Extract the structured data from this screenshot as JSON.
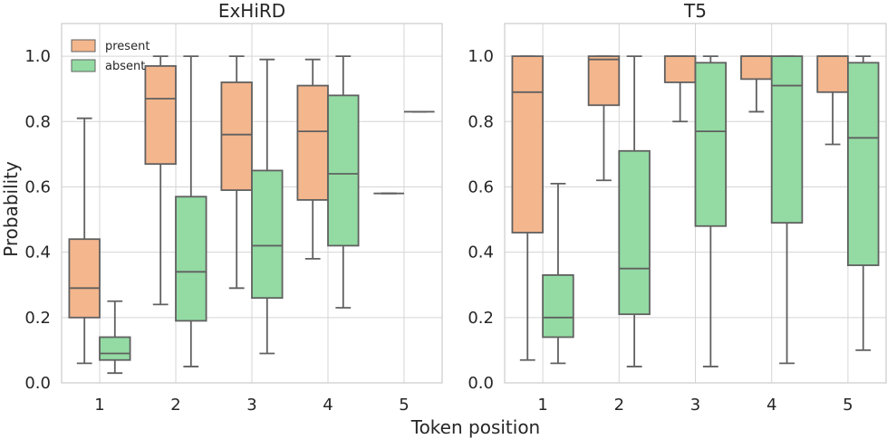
{
  "figure": {
    "xlabel": "Token position",
    "ylabel": "Probability"
  },
  "legend": {
    "position": "top-left",
    "items": [
      {
        "label": "present",
        "color": "#f4b68d"
      },
      {
        "label": "absent",
        "color": "#93dba3"
      }
    ]
  },
  "chart_data": [
    {
      "type": "box",
      "title": "ExHiRD",
      "categories": [
        "1",
        "2",
        "3",
        "4",
        "5"
      ],
      "ylim": [
        0,
        1.1
      ],
      "yticks": [
        0.0,
        0.2,
        0.4,
        0.6,
        0.8,
        1.0
      ],
      "ytick_labels": [
        "0.0",
        "0.2",
        "0.4",
        "0.6",
        "0.8",
        "1.0"
      ],
      "grid": true,
      "series": [
        {
          "name": "present",
          "color": "#f4b68d",
          "boxes": [
            {
              "min": 0.06,
              "q1": 0.2,
              "median": 0.29,
              "q3": 0.44,
              "max": 0.81
            },
            {
              "min": 0.24,
              "q1": 0.67,
              "median": 0.87,
              "q3": 0.97,
              "max": 1.0
            },
            {
              "min": 0.29,
              "q1": 0.59,
              "median": 0.76,
              "q3": 0.92,
              "max": 1.0
            },
            {
              "min": 0.38,
              "q1": 0.56,
              "median": 0.77,
              "q3": 0.91,
              "max": 0.99
            },
            {
              "min": 0.58,
              "q1": 0.58,
              "median": 0.58,
              "q3": 0.58,
              "max": 0.58
            }
          ]
        },
        {
          "name": "absent",
          "color": "#93dba3",
          "boxes": [
            {
              "min": 0.03,
              "q1": 0.07,
              "median": 0.09,
              "q3": 0.14,
              "max": 0.25
            },
            {
              "min": 0.05,
              "q1": 0.19,
              "median": 0.34,
              "q3": 0.57,
              "max": 1.0
            },
            {
              "min": 0.09,
              "q1": 0.26,
              "median": 0.42,
              "q3": 0.65,
              "max": 0.99
            },
            {
              "min": 0.23,
              "q1": 0.42,
              "median": 0.64,
              "q3": 0.88,
              "max": 1.0
            },
            {
              "min": 0.83,
              "q1": 0.83,
              "median": 0.83,
              "q3": 0.83,
              "max": 0.83
            }
          ]
        }
      ]
    },
    {
      "type": "box",
      "title": "T5",
      "categories": [
        "1",
        "2",
        "3",
        "4",
        "5"
      ],
      "ylim": [
        0,
        1.1
      ],
      "yticks": [
        0.0,
        0.2,
        0.4,
        0.6,
        0.8,
        1.0
      ],
      "ytick_labels": [
        "0.0",
        "0.2",
        "0.4",
        "0.6",
        "0.8",
        "1.0"
      ],
      "grid": true,
      "series": [
        {
          "name": "present",
          "color": "#f4b68d",
          "boxes": [
            {
              "min": 0.07,
              "q1": 0.46,
              "median": 0.89,
              "q3": 1.0,
              "max": 1.0
            },
            {
              "min": 0.62,
              "q1": 0.85,
              "median": 0.99,
              "q3": 1.0,
              "max": 1.0
            },
            {
              "min": 0.8,
              "q1": 0.92,
              "median": 1.0,
              "q3": 1.0,
              "max": 1.0
            },
            {
              "min": 0.83,
              "q1": 0.93,
              "median": 1.0,
              "q3": 1.0,
              "max": 1.0
            },
            {
              "min": 0.73,
              "q1": 0.89,
              "median": 1.0,
              "q3": 1.0,
              "max": 1.0
            }
          ]
        },
        {
          "name": "absent",
          "color": "#93dba3",
          "boxes": [
            {
              "min": 0.06,
              "q1": 0.14,
              "median": 0.2,
              "q3": 0.33,
              "max": 0.61
            },
            {
              "min": 0.05,
              "q1": 0.21,
              "median": 0.35,
              "q3": 0.71,
              "max": 1.0
            },
            {
              "min": 0.05,
              "q1": 0.48,
              "median": 0.77,
              "q3": 0.98,
              "max": 1.0
            },
            {
              "min": 0.06,
              "q1": 0.49,
              "median": 0.91,
              "q3": 1.0,
              "max": 1.0
            },
            {
              "min": 0.1,
              "q1": 0.36,
              "median": 0.75,
              "q3": 0.98,
              "max": 1.0
            }
          ]
        }
      ]
    }
  ]
}
